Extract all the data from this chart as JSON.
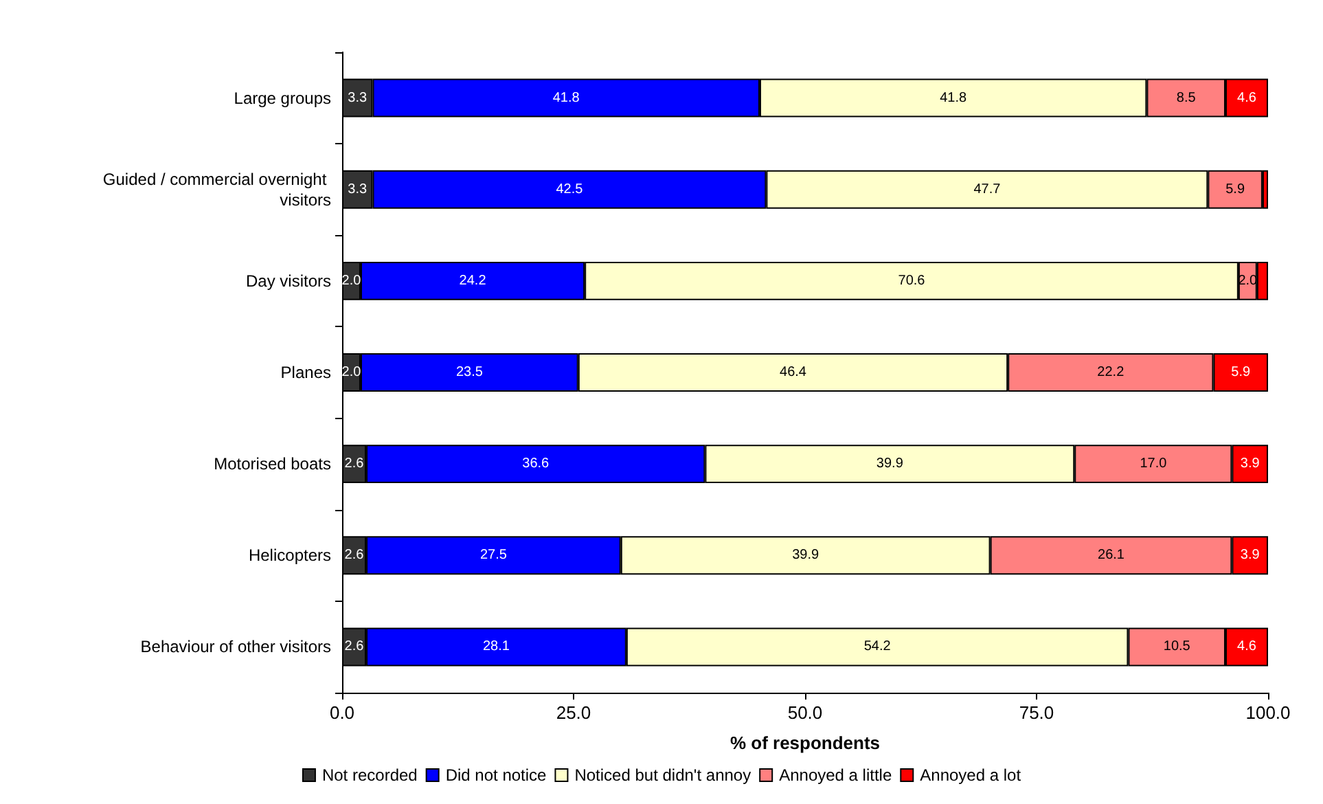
{
  "chart_data": {
    "type": "bar",
    "orientation": "horizontal",
    "stacked": true,
    "xlabel": "% of respondents",
    "categories": [
      "Large groups",
      "Guided / commercial overnight visitors",
      "Day visitors",
      "Planes",
      "Motorised boats",
      "Helicopters",
      "Behaviour of other visitors"
    ],
    "series": [
      {
        "name": "Not recorded",
        "color": "#333333",
        "values": [
          3.3,
          3.3,
          2.0,
          2.0,
          2.6,
          2.6,
          2.6
        ],
        "value_labels": [
          "3.3",
          "3.3",
          "2.0",
          "2.0",
          "2.6",
          "2.6",
          "2.6"
        ]
      },
      {
        "name": "Did not notice",
        "color": "#0000ff",
        "values": [
          41.8,
          42.5,
          24.2,
          23.5,
          36.6,
          27.5,
          28.1
        ],
        "value_labels": [
          "41.8",
          "42.5",
          "24.2",
          "23.5",
          "36.6",
          "27.5",
          "28.1"
        ]
      },
      {
        "name": "Noticed but didn't annoy",
        "color": "#ffffcc",
        "values": [
          41.8,
          47.7,
          70.6,
          46.4,
          39.9,
          39.9,
          54.2
        ],
        "value_labels": [
          "41.8",
          "47.7",
          "70.6",
          "46.4",
          "39.9",
          "39.9",
          "54.2"
        ]
      },
      {
        "name": "Annoyed a little",
        "color": "#ff8080",
        "values": [
          8.5,
          5.9,
          2.0,
          22.2,
          17.0,
          26.1,
          10.5
        ],
        "value_labels": [
          "8.5",
          "5.9",
          "2.0",
          "22.2",
          "17.0",
          "26.1",
          "10.5"
        ]
      },
      {
        "name": "Annoyed a lot",
        "color": "#ff0000",
        "values": [
          4.6,
          0.6,
          1.2,
          5.9,
          3.9,
          3.9,
          4.6
        ],
        "value_labels": [
          "4.6",
          null,
          null,
          "5.9",
          "3.9",
          "3.9",
          "4.6"
        ]
      }
    ],
    "xlim": [
      0,
      100
    ],
    "xticks": [
      {
        "value": 0,
        "label": "0.0"
      },
      {
        "value": 25,
        "label": "25.0"
      },
      {
        "value": 50,
        "label": "50.0"
      },
      {
        "value": 75,
        "label": "75.0"
      },
      {
        "value": 100,
        "label": "100.0"
      }
    ],
    "grid": false,
    "legend": "bottom"
  }
}
